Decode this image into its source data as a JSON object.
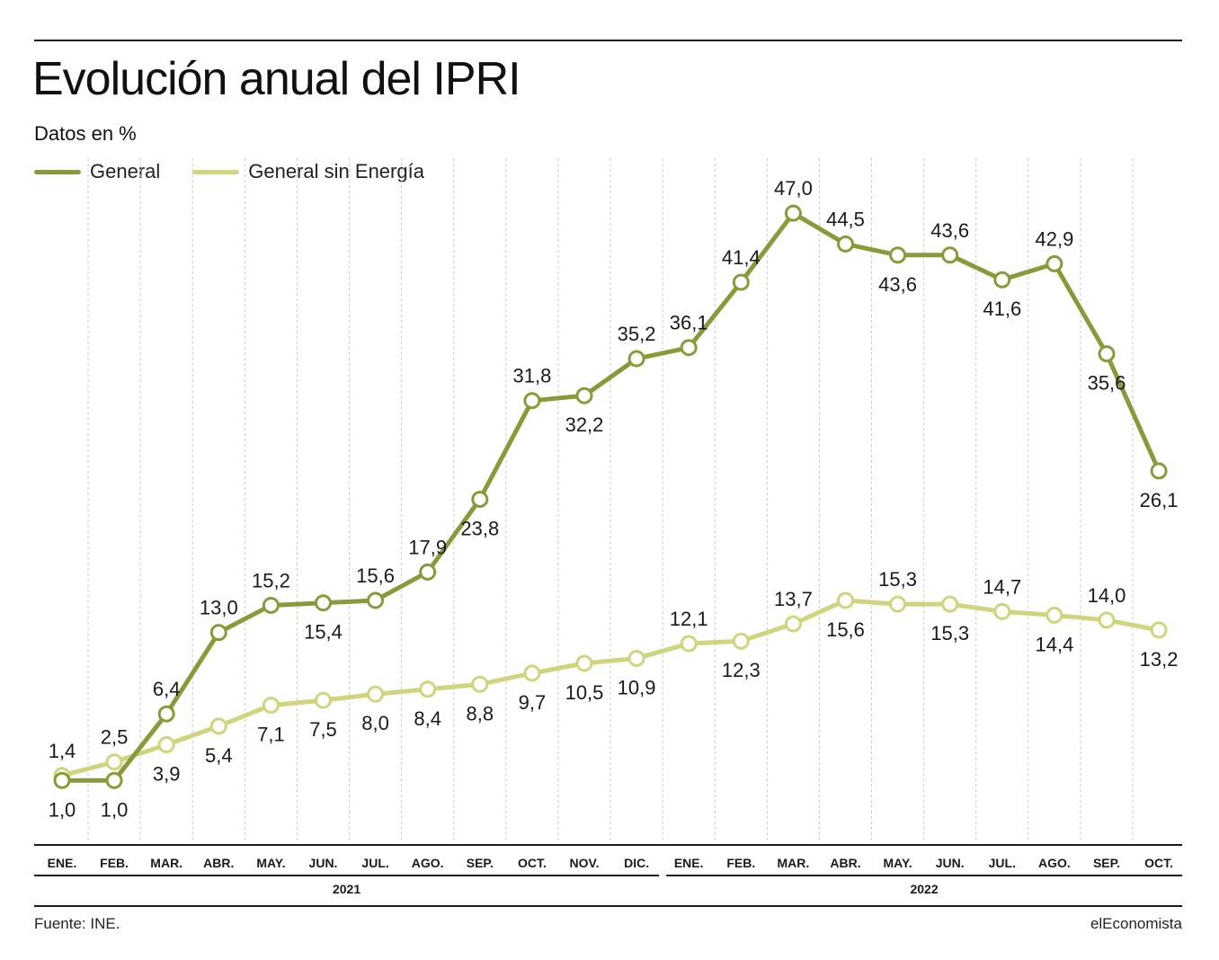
{
  "header": {
    "title": "Evolución anual del IPRI",
    "subtitle": "Datos en %"
  },
  "footer": {
    "source": "Fuente: INE.",
    "brand": "elEconomista"
  },
  "colors": {
    "general": "#8a9a3b",
    "sin_energia": "#cfd47d",
    "grid": "#c9c9c9",
    "axis": "#1a1a1a"
  },
  "chart_data": {
    "type": "line",
    "title": "Evolución anual del IPRI",
    "ylabel": "",
    "xlabel": "",
    "grid": true,
    "legend_position": "top-left",
    "categories": [
      "ENE.",
      "FEB.",
      "MAR.",
      "ABR.",
      "MAY.",
      "JUN.",
      "JUL.",
      "AGO.",
      "SEP.",
      "OCT.",
      "NOV.",
      "DIC.",
      "ENE.",
      "FEB.",
      "MAR.",
      "ABR.",
      "MAY.",
      "JUN.",
      "JUL.",
      "AGO.",
      "SEP.",
      "OCT."
    ],
    "years": [
      {
        "label": "2021",
        "start": 0,
        "end": 11
      },
      {
        "label": "2022",
        "start": 12,
        "end": 21
      }
    ],
    "series": [
      {
        "name": "General",
        "values": [
          1.0,
          1.0,
          6.4,
          13.0,
          15.2,
          15.4,
          15.6,
          17.9,
          23.8,
          31.8,
          32.2,
          35.2,
          36.1,
          41.4,
          47.0,
          44.5,
          43.6,
          43.6,
          41.6,
          42.9,
          35.6,
          26.1
        ],
        "labels": [
          "1,0",
          "1,0",
          "6,4",
          "13,0",
          "15,2",
          "15,4",
          "15,6",
          "17,9",
          "23,8",
          "31,8",
          "32,2",
          "35,2",
          "36,1",
          "41,4",
          "47,0",
          "44,5",
          "43,6",
          "43,6",
          "41,6",
          "42,9",
          "35,6",
          "26,1"
        ],
        "label_side": [
          "below",
          "below",
          "above",
          "above",
          "above",
          "below",
          "above",
          "above",
          "below",
          "above",
          "below",
          "above",
          "above",
          "above",
          "above",
          "above",
          "below",
          "above",
          "below",
          "above",
          "below",
          "below"
        ]
      },
      {
        "name": "General sin Energía",
        "values": [
          1.4,
          2.5,
          3.9,
          5.4,
          7.1,
          7.5,
          8.0,
          8.4,
          8.8,
          9.7,
          10.5,
          10.9,
          12.1,
          12.3,
          13.7,
          15.6,
          15.3,
          15.3,
          14.7,
          14.4,
          14.0,
          13.2
        ],
        "labels": [
          "1,4",
          "2,5",
          "3,9",
          "5,4",
          "7,1",
          "7,5",
          "8,0",
          "8,4",
          "8,8",
          "9,7",
          "10,5",
          "10,9",
          "12,1",
          "12,3",
          "13,7",
          "15,6",
          "15,3",
          "15,3",
          "14,7",
          "14,4",
          "14,0",
          "13,2"
        ],
        "label_side": [
          "above",
          "above",
          "below",
          "below",
          "below",
          "below",
          "below",
          "below",
          "below",
          "below",
          "below",
          "below",
          "above",
          "below",
          "above",
          "below",
          "above",
          "below",
          "above",
          "below",
          "above",
          "below"
        ]
      }
    ]
  }
}
